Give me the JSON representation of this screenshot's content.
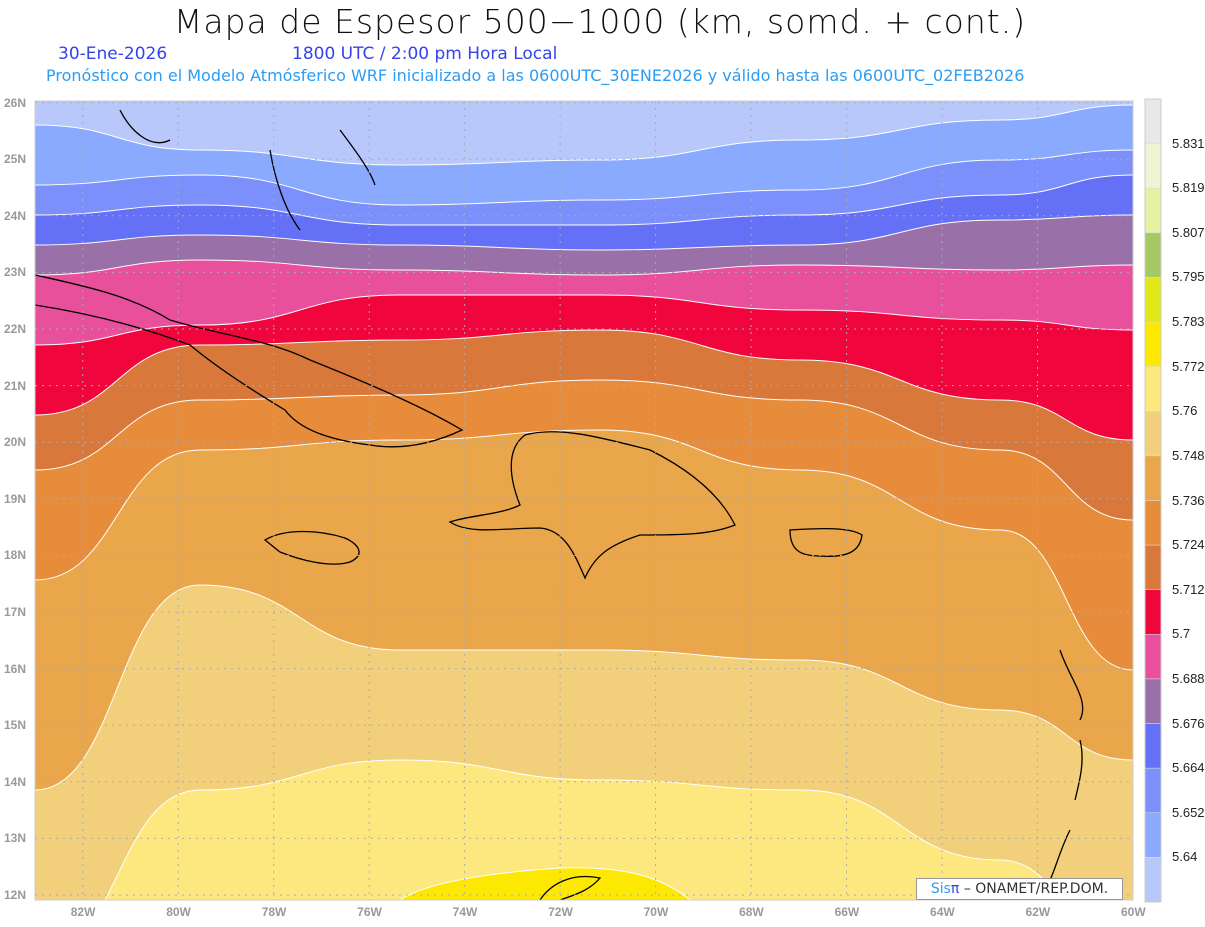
{
  "header": {
    "title": "Mapa de Espesor 500−1000 (km, somd. + cont.)",
    "date": "30-Ene-2026",
    "time": "1800 UTC / 2:00 pm Hora Local",
    "subtitle": "Pronóstico con el Modelo Atmósferico WRF inicializado a las 0600UTC_30ENE2026 y válido hasta las  0600UTC_02FEB2026"
  },
  "axes": {
    "lat_labels": [
      "26N",
      "25N",
      "24N",
      "23N",
      "22N",
      "21N",
      "20N",
      "19N",
      "18N",
      "17N",
      "16N",
      "15N",
      "14N",
      "13N",
      "12N"
    ],
    "lon_labels": [
      "82W",
      "80W",
      "78W",
      "76W",
      "74W",
      "72W",
      "70W",
      "68W",
      "66W",
      "64W",
      "62W",
      "60W"
    ],
    "lat_range": [
      12,
      26
    ],
    "lon_range": [
      -83,
      -60
    ]
  },
  "colorbar": {
    "labels": [
      "5.831",
      "5.819",
      "5.807",
      "5.795",
      "5.783",
      "5.772",
      "5.76",
      "5.748",
      "5.736",
      "5.724",
      "5.712",
      "5.7",
      "5.688",
      "5.676",
      "5.664",
      "5.652",
      "5.64"
    ],
    "colors": [
      "#e8e8e8",
      "#eef4d4",
      "#e4f2a2",
      "#a8c864",
      "#e0e818",
      "#fce800",
      "#fde880",
      "#f2cf7a",
      "#eaa64a",
      "#e68c3a",
      "#d8783a",
      "#f0063c",
      "#e8509c",
      "#9a70a8",
      "#6470f5",
      "#7b90fa",
      "#8aaaff",
      "#b8c8fa"
    ]
  },
  "credit": {
    "brand": "Sis",
    "pi": "π",
    "text": "–  ONAMET/REP.DOM."
  }
}
